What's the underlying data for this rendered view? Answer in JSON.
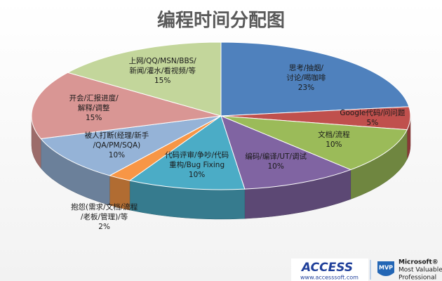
{
  "chart_data": {
    "type": "pie",
    "title": "编程时间分配图",
    "categories": [
      "思考/抽烟/\n讨论/喝咖啡",
      "Google代码/问问题",
      "文档/流程",
      "编码/编译/UT/调试",
      "代码评审/争吵/代码\n重构/Bug Fixing",
      "抱怨(需求/文档/流程\n/老板/管理)/等",
      "被人打断(经理/新手\n/QA/PM/SQA)",
      "开会/汇报进度/\n解释/调整",
      "上网/QQ/MSN/BBS/\n新闻/灌水/看视频/等"
    ],
    "values": [
      23,
      5,
      10,
      10,
      10,
      2,
      10,
      15,
      15
    ],
    "value_labels": [
      "23%",
      "5%",
      "10%",
      "10%",
      "10%",
      "2%",
      "10%",
      "15%",
      "15%"
    ],
    "colors": [
      "#4f81bd",
      "#c0504d",
      "#9bbb59",
      "#8064a2",
      "#4bacc6",
      "#f79646",
      "#95b3d7",
      "#d99694",
      "#c3d69b"
    ]
  },
  "branding": {
    "access": "ACCESS",
    "access_url": "www.accesssoft.com",
    "mvp_badge": "MVP",
    "microsoft": "Microsoft®",
    "mvp_line1": "Most Valuable",
    "mvp_line2": "Professional"
  }
}
